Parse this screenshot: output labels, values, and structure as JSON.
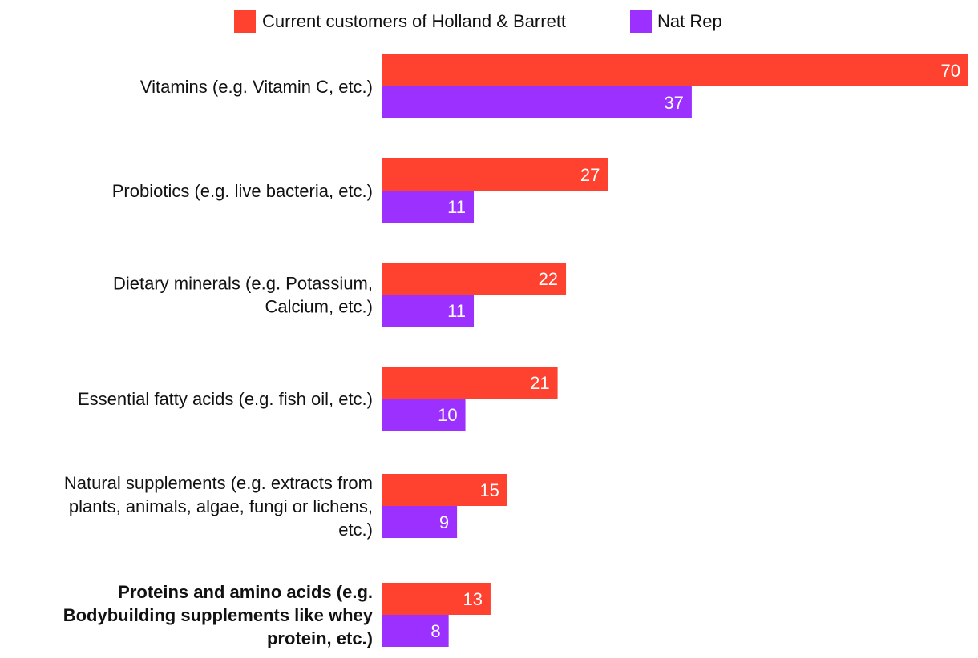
{
  "chart_data": {
    "type": "bar",
    "orientation": "horizontal",
    "categories": [
      "Vitamins (e.g. Vitamin C, etc.)",
      "Probiotics (e.g. live bacteria, etc.)",
      "Dietary minerals (e.g. Potassium, Calcium, etc.)",
      "Essential fatty acids (e.g. fish oil, etc.)",
      "Natural supplements (e.g. extracts from plants, animals, algae, fungi or lichens, etc.)",
      "Proteins and amino acids (e.g. Bodybuilding supplements like whey protein, etc.)"
    ],
    "category_lines": [
      [
        "Vitamins (e.g. Vitamin C, etc.)"
      ],
      [
        "Probiotics (e.g. live bacteria, etc.)"
      ],
      [
        "Dietary minerals (e.g. Potassium,",
        "Calcium, etc.)"
      ],
      [
        "Essential fatty acids (e.g. fish oil, etc.)"
      ],
      [
        "Natural supplements (e.g. extracts from",
        "plants, animals, algae, fungi or lichens,",
        "etc.)"
      ],
      [
        "Proteins and amino acids (e.g.",
        "Bodybuilding supplements like whey",
        "protein, etc.)"
      ]
    ],
    "highlighted_category": 5,
    "series": [
      {
        "name": "Current customers of Holland & Barrett",
        "color": "#ff4230",
        "values": [
          70,
          27,
          22,
          21,
          15,
          13
        ]
      },
      {
        "name": "Nat Rep",
        "color": "#9b30ff",
        "values": [
          37,
          11,
          11,
          10,
          9,
          8
        ]
      }
    ],
    "xlim": [
      0,
      70
    ],
    "grid": false,
    "legend_position": "top-center",
    "data_labels": "inside-end"
  }
}
